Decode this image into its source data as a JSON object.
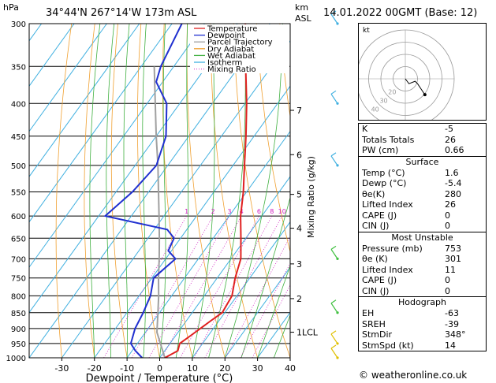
{
  "header": {
    "hpa_label": "hPa",
    "location": "34°44'N  267°14'W  173m  ASL",
    "km_label": "km",
    "asl_label": "ASL",
    "datetime": "14.01.2022  00GMT  (Base: 12)"
  },
  "chart_data": {
    "type": "skew-t log-p diagram",
    "xlabel": "Dewpoint / Temperature (°C)",
    "ylabel": "",
    "mixing_ratio_label": "Mixing Ratio (g/kg)",
    "pressure_ticks": [
      300,
      350,
      400,
      450,
      500,
      550,
      600,
      650,
      700,
      750,
      800,
      850,
      900,
      950,
      1000
    ],
    "temperature_ticks": [
      -30,
      -20,
      -10,
      0,
      10,
      20,
      30,
      40
    ],
    "km_ticks": [
      {
        "km": "7",
        "p": 410
      },
      {
        "km": "6",
        "p": 481
      },
      {
        "km": "5",
        "p": 555
      },
      {
        "km": "4",
        "p": 627
      },
      {
        "km": "3",
        "p": 713
      },
      {
        "km": "2",
        "p": 808
      },
      {
        "km": "1LCL",
        "p": 912
      }
    ],
    "mixing_ratio_values": [
      "1",
      "2",
      "3",
      "4",
      "6",
      "8",
      "10",
      "15",
      "20",
      "25"
    ],
    "legend": [
      {
        "name": "Temperature",
        "color": "#e02020",
        "style": "solid"
      },
      {
        "name": "Dewpoint",
        "color": "#2030d0",
        "style": "solid"
      },
      {
        "name": "Parcel Trajectory",
        "color": "#a0a0a0",
        "style": "solid"
      },
      {
        "name": "Dry Adiabat",
        "color": "#f0a030",
        "style": "solid"
      },
      {
        "name": "Wet Adiabat",
        "color": "#40b040",
        "style": "solid"
      },
      {
        "name": "Isotherm",
        "color": "#40b0e0",
        "style": "solid"
      },
      {
        "name": "Mixing Ratio",
        "color": "#d020c0",
        "style": "dotted"
      }
    ],
    "temperature_profile": [
      {
        "p": 1000,
        "t": 1.6
      },
      {
        "p": 975,
        "t": 4.0
      },
      {
        "p": 950,
        "t": 3.0
      },
      {
        "p": 925,
        "t": 4.5
      },
      {
        "p": 900,
        "t": 6.0
      },
      {
        "p": 875,
        "t": 7.5
      },
      {
        "p": 850,
        "t": 9.2
      },
      {
        "p": 800,
        "t": 8.5
      },
      {
        "p": 750,
        "t": 5.5
      },
      {
        "p": 700,
        "t": 3.0
      },
      {
        "p": 650,
        "t": -1.5
      },
      {
        "p": 600,
        "t": -6.5
      },
      {
        "p": 550,
        "t": -11.0
      },
      {
        "p": 500,
        "t": -16.5
      },
      {
        "p": 450,
        "t": -22.5
      },
      {
        "p": 400,
        "t": -29.5
      },
      {
        "p": 350,
        "t": -38.0
      },
      {
        "p": 300,
        "t": -47.5
      }
    ],
    "dewpoint_profile": [
      {
        "p": 1000,
        "t": -5.4
      },
      {
        "p": 975,
        "t": -9.0
      },
      {
        "p": 950,
        "t": -12.0
      },
      {
        "p": 900,
        "t": -14.0
      },
      {
        "p": 850,
        "t": -15.0
      },
      {
        "p": 800,
        "t": -16.5
      },
      {
        "p": 750,
        "t": -19.5
      },
      {
        "p": 700,
        "t": -17.0
      },
      {
        "p": 680,
        "t": -21.0
      },
      {
        "p": 650,
        "t": -22.0
      },
      {
        "p": 630,
        "t": -26.0
      },
      {
        "p": 600,
        "t": -48.0
      },
      {
        "p": 550,
        "t": -45.0
      },
      {
        "p": 500,
        "t": -43.5
      },
      {
        "p": 450,
        "t": -47.0
      },
      {
        "p": 400,
        "t": -54.0
      },
      {
        "p": 370,
        "t": -62.0
      },
      {
        "p": 350,
        "t": -64.0
      },
      {
        "p": 300,
        "t": -67.0
      }
    ],
    "parcel_profile": [
      {
        "p": 1000,
        "t": 1.6
      },
      {
        "p": 912,
        "t": -6.5
      },
      {
        "p": 850,
        "t": -10.5
      },
      {
        "p": 800,
        "t": -14.0
      },
      {
        "p": 750,
        "t": -18.0
      },
      {
        "p": 700,
        "t": -22.0
      },
      {
        "p": 650,
        "t": -26.5
      },
      {
        "p": 600,
        "t": -31.5
      },
      {
        "p": 550,
        "t": -37.0
      },
      {
        "p": 500,
        "t": -43.0
      },
      {
        "p": 450,
        "t": -50.0
      },
      {
        "p": 400,
        "t": -57.5
      },
      {
        "p": 350,
        "t": -66.0
      }
    ],
    "wind_barbs": [
      {
        "p": 300,
        "color": "#40b0e0"
      },
      {
        "p": 400,
        "color": "#40b0e0"
      },
      {
        "p": 500,
        "color": "#40b0e0"
      },
      {
        "p": 700,
        "color": "#40c040"
      },
      {
        "p": 850,
        "color": "#40c040"
      },
      {
        "p": 950,
        "color": "#e0c000"
      },
      {
        "p": 1000,
        "color": "#e0c000"
      }
    ]
  },
  "hodograph": {
    "unit_label": "kt",
    "ring_labels": [
      "40",
      "30",
      "20"
    ],
    "trace_kt": [
      {
        "u": 0,
        "v": 0
      },
      {
        "u": 3,
        "v": -4
      },
      {
        "u": 8,
        "v": -2
      },
      {
        "u": 10,
        "v": -4
      },
      {
        "u": 14,
        "v": -10
      },
      {
        "u": 16,
        "v": -13
      }
    ]
  },
  "indices": {
    "rows": [
      {
        "label": "K",
        "value": "-5"
      },
      {
        "label": "Totals Totals",
        "value": "26"
      },
      {
        "label": "PW (cm)",
        "value": "0.66"
      }
    ]
  },
  "surface": {
    "title": "Surface",
    "rows": [
      {
        "label": "Temp (°C)",
        "value": "1.6"
      },
      {
        "label": "Dewp (°C)",
        "value": "-5.4"
      },
      {
        "label": "θe(K)",
        "value": "280"
      },
      {
        "label": "Lifted Index",
        "value": "26"
      },
      {
        "label": "CAPE (J)",
        "value": "0"
      },
      {
        "label": "CIN (J)",
        "value": "0"
      }
    ]
  },
  "most_unstable": {
    "title": "Most Unstable",
    "rows": [
      {
        "label": "Pressure (mb)",
        "value": "753"
      },
      {
        "label": "θe (K)",
        "value": "301"
      },
      {
        "label": "Lifted Index",
        "value": "11"
      },
      {
        "label": "CAPE (J)",
        "value": "0"
      },
      {
        "label": "CIN (J)",
        "value": "0"
      }
    ]
  },
  "hodograph_table": {
    "title": "Hodograph",
    "rows": [
      {
        "label": "EH",
        "value": "-63"
      },
      {
        "label": "SREH",
        "value": "-39"
      },
      {
        "label": "StmDir",
        "value": "348°"
      },
      {
        "label": "StmSpd (kt)",
        "value": "14"
      }
    ]
  },
  "footer": {
    "credit": "© weatheronline.co.uk"
  }
}
